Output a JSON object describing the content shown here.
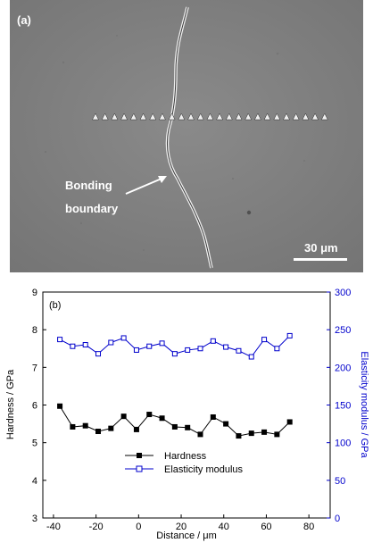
{
  "micrograph": {
    "panel_label": "(a)",
    "annotation_line1": "Bonding",
    "annotation_line2": "boundary",
    "scale_bar_label": "30 μm"
  },
  "chart_data": {
    "type": "line",
    "panel_label": "(b)",
    "xlabel": "Distance / μm",
    "ylabel_left": "Hardness / GPa",
    "ylabel_right": "Elasticity modulus / GPa",
    "xlim": [
      -45,
      90
    ],
    "ylim_left": [
      3,
      9
    ],
    "ylim_right": [
      0,
      300
    ],
    "xticks": [
      -40,
      -20,
      0,
      20,
      40,
      60,
      80
    ],
    "yticks_left": [
      3,
      4,
      5,
      6,
      7,
      8,
      9
    ],
    "yticks_right": [
      0,
      50,
      100,
      150,
      200,
      250,
      300
    ],
    "legend_position": "bottom-center",
    "colors": {
      "hardness": "#000000",
      "modulus": "#0000cc"
    },
    "x": [
      -37,
      -31,
      -25,
      -19,
      -13,
      -7,
      -1,
      5,
      11,
      17,
      23,
      29,
      35,
      41,
      47,
      53,
      59,
      65,
      71
    ],
    "series": [
      {
        "name": "Hardness",
        "axis": "left",
        "marker": "filled-square",
        "values": [
          5.97,
          5.42,
          5.45,
          5.3,
          5.38,
          5.7,
          5.35,
          5.75,
          5.65,
          5.42,
          5.4,
          5.22,
          5.68,
          5.5,
          5.18,
          5.25,
          5.28,
          5.22,
          5.55
        ]
      },
      {
        "name": "Elasticity modulus",
        "axis": "right",
        "marker": "open-square",
        "values": [
          237,
          228,
          230,
          218,
          233,
          239,
          223,
          228,
          232,
          218,
          223,
          225,
          235,
          227,
          222,
          214,
          237,
          225,
          242
        ]
      }
    ]
  }
}
